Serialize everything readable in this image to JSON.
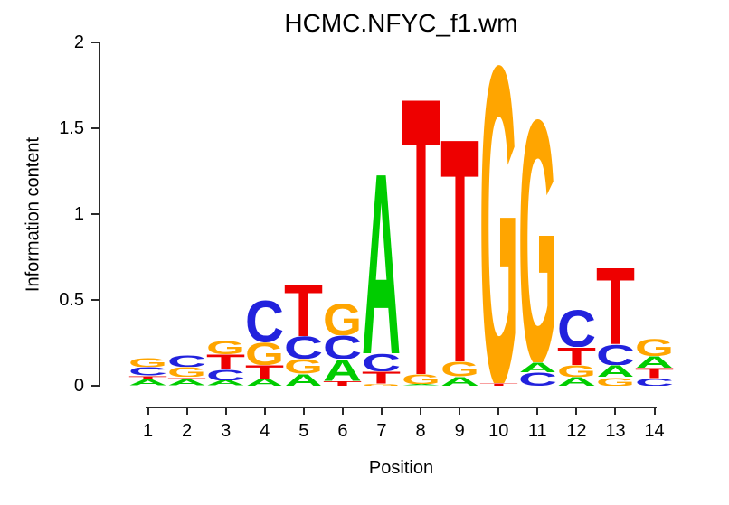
{
  "figure": {
    "title": "HCMC.NFYC_f1.wm",
    "xlabel": "Position",
    "ylabel": "Information content"
  },
  "chart_data": {
    "type": "sequence_logo",
    "title": "HCMC.NFYC_f1.wm",
    "xlabel": "Position",
    "ylabel": "Information content",
    "ylim": [
      0,
      2
    ],
    "ytick_values": [
      0,
      0.5,
      1,
      1.5,
      2
    ],
    "ytick_labels": [
      "0",
      "0.5",
      "1",
      "1.5",
      "2"
    ],
    "xtick_labels": [
      "1",
      "2",
      "3",
      "4",
      "5",
      "6",
      "7",
      "8",
      "9",
      "10",
      "11",
      "12",
      "13",
      "14"
    ],
    "grid": false,
    "legend": "none",
    "letter_colors": {
      "A": "#00CC00",
      "C": "#2222DD",
      "G": "#FFA500",
      "T": "#EE0000"
    },
    "positions": [
      {
        "position": 1,
        "stack": [
          {
            "base": "A",
            "ic": 0.035
          },
          {
            "base": "T",
            "ic": 0.025
          },
          {
            "base": "C",
            "ic": 0.05
          },
          {
            "base": "G",
            "ic": 0.055
          }
        ]
      },
      {
        "position": 2,
        "stack": [
          {
            "base": "A",
            "ic": 0.035
          },
          {
            "base": "T",
            "ic": 0.015
          },
          {
            "base": "G",
            "ic": 0.06
          },
          {
            "base": "C",
            "ic": 0.07
          }
        ]
      },
      {
        "position": 3,
        "stack": [
          {
            "base": "A",
            "ic": 0.03
          },
          {
            "base": "C",
            "ic": 0.065
          },
          {
            "base": "T",
            "ic": 0.09
          },
          {
            "base": "G",
            "ic": 0.08
          }
        ]
      },
      {
        "position": 4,
        "stack": [
          {
            "base": "A",
            "ic": 0.044
          },
          {
            "base": "T",
            "ic": 0.079
          },
          {
            "base": "G",
            "ic": 0.132
          },
          {
            "base": "C",
            "ic": 0.25
          }
        ]
      },
      {
        "position": 5,
        "stack": [
          {
            "base": "A",
            "ic": 0.07
          },
          {
            "base": "G",
            "ic": 0.088
          },
          {
            "base": "C",
            "ic": 0.132
          },
          {
            "base": "T",
            "ic": 0.31
          }
        ]
      },
      {
        "position": 6,
        "stack": [
          {
            "base": "T",
            "ic": 0.026
          },
          {
            "base": "A",
            "ic": 0.13
          },
          {
            "base": "C",
            "ic": 0.14
          },
          {
            "base": "G",
            "ic": 0.19
          }
        ]
      },
      {
        "position": 7,
        "stack": [
          {
            "base": "G",
            "ic": 0.012
          },
          {
            "base": "T",
            "ic": 0.07
          },
          {
            "base": "C",
            "ic": 0.105
          },
          {
            "base": "A",
            "ic": 1.08
          }
        ]
      },
      {
        "position": 8,
        "stack": [
          {
            "base": "A",
            "ic": 0.008
          },
          {
            "base": "G",
            "ic": 0.06
          },
          {
            "base": "T",
            "ic": 1.66
          }
        ]
      },
      {
        "position": 9,
        "stack": [
          {
            "base": "A",
            "ic": 0.053
          },
          {
            "base": "G",
            "ic": 0.088
          },
          {
            "base": "T",
            "ic": 1.34
          }
        ]
      },
      {
        "position": 10,
        "stack": [
          {
            "base": "T",
            "ic": 0.015
          },
          {
            "base": "G",
            "ic": 1.9
          }
        ]
      },
      {
        "position": 11,
        "stack": [
          {
            "base": "C",
            "ic": 0.079
          },
          {
            "base": "A",
            "ic": 0.06
          },
          {
            "base": "G",
            "ic": 1.45
          }
        ]
      },
      {
        "position": 12,
        "stack": [
          {
            "base": "A",
            "ic": 0.053
          },
          {
            "base": "G",
            "ic": 0.07
          },
          {
            "base": "T",
            "ic": 0.105
          },
          {
            "base": "C",
            "ic": 0.22
          }
        ]
      },
      {
        "position": 13,
        "stack": [
          {
            "base": "G",
            "ic": 0.05
          },
          {
            "base": "A",
            "ic": 0.07
          },
          {
            "base": "C",
            "ic": 0.123
          },
          {
            "base": "T",
            "ic": 0.46
          }
        ]
      },
      {
        "position": 14,
        "stack": [
          {
            "base": "C",
            "ic": 0.044
          },
          {
            "base": "T",
            "ic": 0.06
          },
          {
            "base": "A",
            "ic": 0.07
          },
          {
            "base": "G",
            "ic": 0.1
          }
        ]
      }
    ]
  }
}
